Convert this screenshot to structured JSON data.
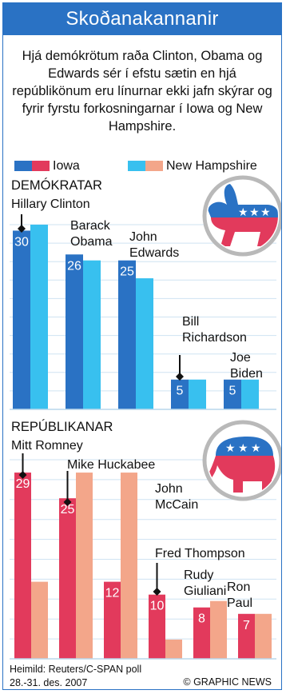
{
  "title": "Skoðanakannanir",
  "intro": "Hjá demókrötum raða Clinton, Obama og Edwards sér í efstu sætin en hjá repúblikönum eru línurnar ekki jafn skýrar og fyrir fyrstu forkosningarnar í Iowa og New Hampshire.",
  "legend": {
    "iowa": "Iowa",
    "new_hampshire": "New Hampshire"
  },
  "source": {
    "line1": "Heimild: Reuters/C-SPAN poll",
    "line2": "28.-31. des. 2007"
  },
  "credit": "© GRAPHIC NEWS",
  "colors": {
    "iowa_dem": "#2a72c4",
    "nh_dem": "#38c0ef",
    "iowa_rep": "#e23a5c",
    "nh_rep": "#f3a68a",
    "header": "#2a72c4"
  },
  "icons": {
    "democrats": "donkey-icon",
    "republicans": "elephant-icon"
  },
  "chart_data": [
    {
      "type": "bar",
      "title": "DEMÓKRATAR",
      "categories": [
        "Hillary Clinton",
        "Barack Obama",
        "John Edwards",
        "Bill Richardson",
        "Joe Biden"
      ],
      "category_labels": [
        [
          "Hillary Clinton"
        ],
        [
          "Barack",
          "Obama"
        ],
        [
          "John",
          "Edwards"
        ],
        [
          "Bill",
          "Richardson"
        ],
        [
          "Joe",
          "Biden"
        ]
      ],
      "series": [
        {
          "name": "Iowa",
          "values": [
            30,
            26,
            25,
            5,
            5
          ]
        },
        {
          "name": "New Hampshire",
          "values": [
            31,
            25,
            22,
            5,
            5
          ]
        }
      ],
      "value_labels": [
        "30",
        "26",
        "25",
        "5",
        "5"
      ],
      "ylim": [
        0,
        31
      ],
      "grid": true
    },
    {
      "type": "bar",
      "title": "REPÚBLIKANAR",
      "categories": [
        "Mitt Romney",
        "Mike Huckabee",
        "John McCain",
        "Fred Thompson",
        "Rudy Giuliani",
        "Ron Paul"
      ],
      "category_labels": [
        [
          "Mitt Romney"
        ],
        [
          "Mike Huckabee"
        ],
        [
          "John",
          "McCain"
        ],
        [
          "Fred Thompson"
        ],
        [
          "Rudy",
          "Giuliani"
        ],
        [
          "Ron",
          "Paul"
        ]
      ],
      "series": [
        {
          "name": "Iowa",
          "values": [
            29,
            25,
            12,
            10,
            8,
            7
          ]
        },
        {
          "name": "New Hampshire",
          "values": [
            12,
            29,
            29,
            3,
            9,
            7
          ]
        }
      ],
      "value_labels": [
        "29",
        "25",
        "12",
        "10",
        "8",
        "7"
      ],
      "ylim": [
        0,
        31
      ],
      "grid": true
    }
  ]
}
